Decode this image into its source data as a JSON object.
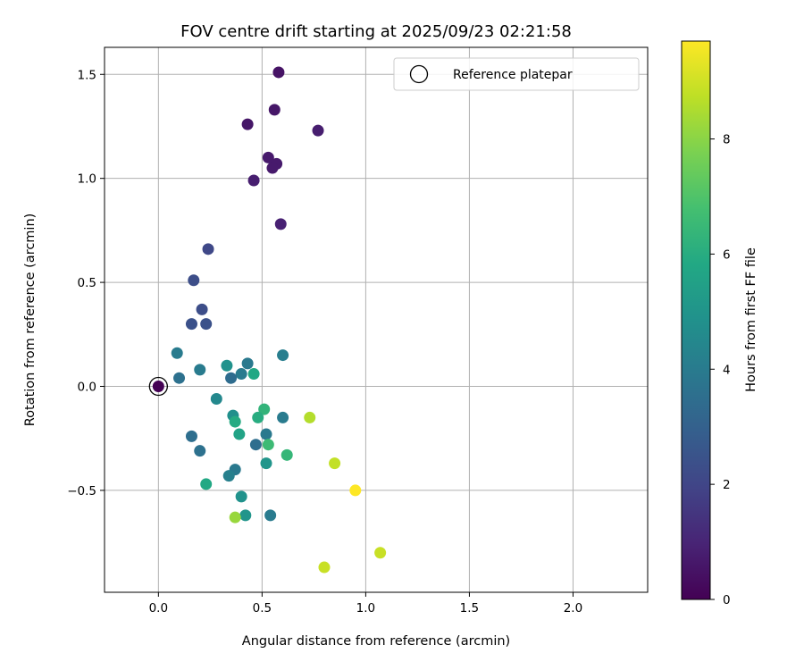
{
  "chart_data": {
    "type": "scatter",
    "title": "FOV centre drift starting at 2025/09/23 02:21:58",
    "xlabel": "Angular distance from reference (arcmin)",
    "ylabel": "Rotation from reference (arcmin)",
    "xlim": [
      -0.26,
      2.36
    ],
    "ylim": [
      -0.99,
      1.63
    ],
    "grid": true,
    "x_ticks": [
      0.0,
      0.5,
      1.0,
      1.5,
      2.0
    ],
    "x_tick_labels": [
      "0.0",
      "0.5",
      "1.0",
      "1.5",
      "2.0"
    ],
    "y_ticks": [
      -0.5,
      0.0,
      0.5,
      1.0,
      1.5
    ],
    "y_tick_labels": [
      "−0.5",
      "0.0",
      "0.5",
      "1.0",
      "1.5"
    ],
    "colorbar": {
      "label": "Hours from first FF file",
      "colormap": "viridis",
      "range": [
        0,
        9.7
      ],
      "ticks": [
        0,
        2,
        4,
        6,
        8
      ],
      "tick_labels": [
        "0",
        "2",
        "4",
        "6",
        "8"
      ]
    },
    "legend": {
      "label": "Reference platepar",
      "location": "upper-right"
    },
    "reference_point": {
      "x": 0.0,
      "y": 0.0,
      "hours": 0.0
    },
    "points": [
      {
        "x": 0.58,
        "y": 1.51,
        "hours": 0.5
      },
      {
        "x": 0.56,
        "y": 1.33,
        "hours": 0.6
      },
      {
        "x": 0.43,
        "y": 1.26,
        "hours": 0.6
      },
      {
        "x": 0.77,
        "y": 1.23,
        "hours": 0.8
      },
      {
        "x": 0.53,
        "y": 1.1,
        "hours": 0.7
      },
      {
        "x": 0.57,
        "y": 1.07,
        "hours": 0.7
      },
      {
        "x": 0.55,
        "y": 1.05,
        "hours": 0.7
      },
      {
        "x": 0.46,
        "y": 0.99,
        "hours": 0.8
      },
      {
        "x": 0.59,
        "y": 0.78,
        "hours": 0.9
      },
      {
        "x": 0.24,
        "y": 0.66,
        "hours": 2.1
      },
      {
        "x": 0.17,
        "y": 0.51,
        "hours": 2.3
      },
      {
        "x": 0.21,
        "y": 0.37,
        "hours": 2.3
      },
      {
        "x": 0.16,
        "y": 0.3,
        "hours": 2.4
      },
      {
        "x": 0.23,
        "y": 0.3,
        "hours": 2.4
      },
      {
        "x": 0.09,
        "y": 0.16,
        "hours": 4.0
      },
      {
        "x": 0.6,
        "y": 0.15,
        "hours": 4.1
      },
      {
        "x": 0.43,
        "y": 0.11,
        "hours": 3.9
      },
      {
        "x": 0.33,
        "y": 0.1,
        "hours": 4.9
      },
      {
        "x": 0.2,
        "y": 0.08,
        "hours": 4.0
      },
      {
        "x": 0.4,
        "y": 0.06,
        "hours": 4.0
      },
      {
        "x": 0.46,
        "y": 0.06,
        "hours": 5.8
      },
      {
        "x": 0.1,
        "y": 0.04,
        "hours": 3.6
      },
      {
        "x": 0.35,
        "y": 0.04,
        "hours": 3.4
      },
      {
        "x": 0.28,
        "y": -0.06,
        "hours": 4.5
      },
      {
        "x": 0.51,
        "y": -0.11,
        "hours": 6.3
      },
      {
        "x": 0.36,
        "y": -0.14,
        "hours": 4.8
      },
      {
        "x": 0.48,
        "y": -0.15,
        "hours": 6.0
      },
      {
        "x": 0.6,
        "y": -0.15,
        "hours": 4.0
      },
      {
        "x": 0.73,
        "y": -0.15,
        "hours": 8.6
      },
      {
        "x": 0.37,
        "y": -0.17,
        "hours": 5.9
      },
      {
        "x": 0.16,
        "y": -0.24,
        "hours": 3.5
      },
      {
        "x": 0.39,
        "y": -0.23,
        "hours": 5.6
      },
      {
        "x": 0.52,
        "y": -0.23,
        "hours": 3.9
      },
      {
        "x": 0.47,
        "y": -0.28,
        "hours": 3.5
      },
      {
        "x": 0.53,
        "y": -0.28,
        "hours": 6.6
      },
      {
        "x": 0.2,
        "y": -0.31,
        "hours": 3.6
      },
      {
        "x": 0.62,
        "y": -0.33,
        "hours": 6.4
      },
      {
        "x": 0.52,
        "y": -0.37,
        "hours": 5.0
      },
      {
        "x": 0.85,
        "y": -0.37,
        "hours": 8.8
      },
      {
        "x": 0.37,
        "y": -0.4,
        "hours": 3.9
      },
      {
        "x": 0.34,
        "y": -0.43,
        "hours": 4.2
      },
      {
        "x": 0.23,
        "y": -0.47,
        "hours": 5.8
      },
      {
        "x": 0.95,
        "y": -0.5,
        "hours": 9.7
      },
      {
        "x": 0.4,
        "y": -0.53,
        "hours": 4.9
      },
      {
        "x": 0.42,
        "y": -0.62,
        "hours": 5.0
      },
      {
        "x": 0.54,
        "y": -0.62,
        "hours": 4.0
      },
      {
        "x": 0.37,
        "y": -0.63,
        "hours": 8.2
      },
      {
        "x": 1.07,
        "y": -0.8,
        "hours": 8.9
      },
      {
        "x": 0.8,
        "y": -0.87,
        "hours": 8.9
      }
    ]
  }
}
